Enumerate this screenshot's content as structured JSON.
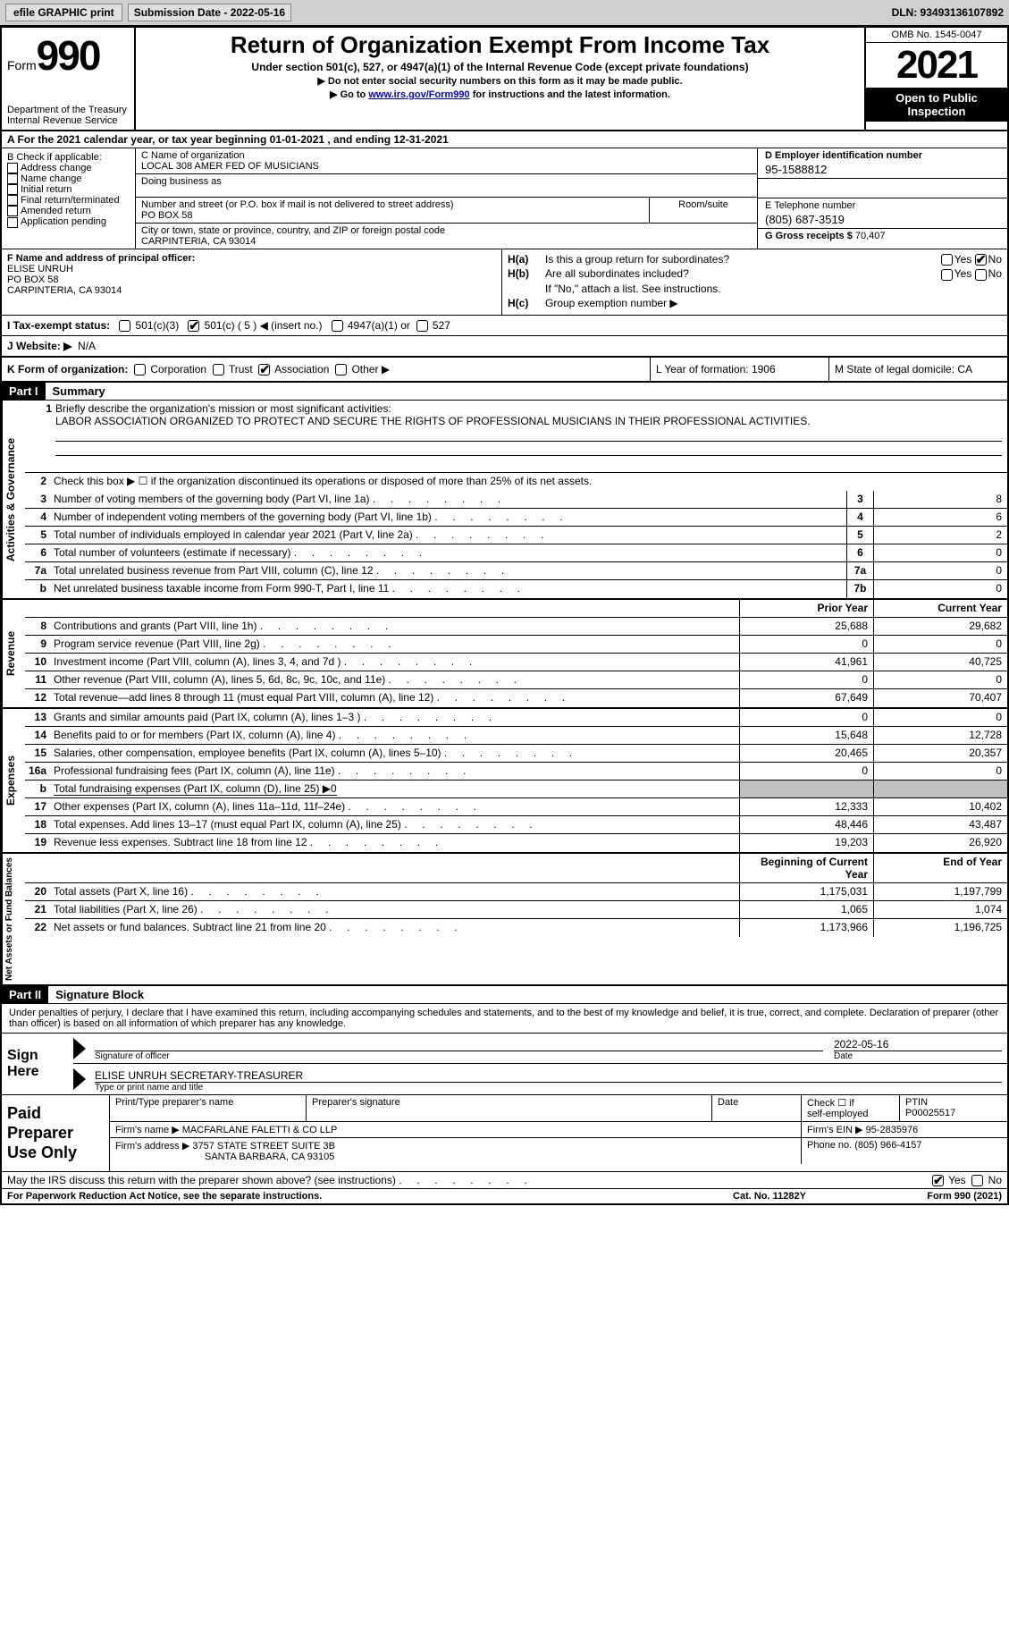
{
  "topbar": {
    "efile": "efile GRAPHIC print",
    "submission_label": "Submission Date - 2022-05-16",
    "dln": "DLN: 93493136107892"
  },
  "header": {
    "form_label": "Form",
    "form_number": "990",
    "dept": "Department of the Treasury",
    "irs": "Internal Revenue Service",
    "title": "Return of Organization Exempt From Income Tax",
    "subtitle": "Under section 501(c), 527, or 4947(a)(1) of the Internal Revenue Code (except private foundations)",
    "note1": "▶ Do not enter social security numbers on this form as it may be made public.",
    "note2_pre": "▶ Go to ",
    "note2_link": "www.irs.gov/Form990",
    "note2_post": " for instructions and the latest information.",
    "omb": "OMB No. 1545-0047",
    "year": "2021",
    "inspection": "Open to Public Inspection"
  },
  "rowA": "A   For the 2021 calendar year, or tax year beginning 01-01-2021    , and ending 12-31-2021",
  "sectionB": {
    "label": "B Check if applicable:",
    "opts": [
      "Address change",
      "Name change",
      "Initial return",
      "Final return/terminated",
      "Amended return",
      "Application pending"
    ]
  },
  "sectionC": {
    "name_label": "C Name of organization",
    "name": "LOCAL 308 AMER FED OF MUSICIANS",
    "dba_label": "Doing business as",
    "street_label": "Number and street (or P.O. box if mail is not delivered to street address)",
    "room_label": "Room/suite",
    "street": "PO BOX 58",
    "city_label": "City or town, state or province, country, and ZIP or foreign postal code",
    "city": "CARPINTERIA, CA   93014"
  },
  "sectionD": {
    "ein_label": "D Employer identification number",
    "ein": "95-1588812",
    "phone_label": "E Telephone number",
    "phone": "(805) 687-3519",
    "gross_label": "G Gross receipts $",
    "gross": "70,407"
  },
  "sectionF": {
    "label": "F  Name and address of principal officer:",
    "name": "ELISE UNRUH",
    "addr1": "PO BOX 58",
    "addr2": "CARPINTERIA, CA  93014"
  },
  "sectionH": {
    "a_label": "H(a)",
    "a_text": "Is this a group return for subordinates?",
    "b_label": "H(b)",
    "b_text": "Are all subordinates included?",
    "b_note": "If \"No,\" attach a list. See instructions.",
    "c_label": "H(c)",
    "c_text": "Group exemption number ▶",
    "yes": "Yes",
    "no": "No"
  },
  "rowI": {
    "label": "I   Tax-exempt status:",
    "o1": "501(c)(3)",
    "o2": "501(c) ( 5 ) ◀ (insert no.)",
    "o3": "4947(a)(1) or",
    "o4": "527"
  },
  "rowJ": {
    "label": "J   Website: ▶",
    "val": "N/A"
  },
  "rowK": {
    "label": "K Form of organization:",
    "o1": "Corporation",
    "o2": "Trust",
    "o3": "Association",
    "o4": "Other ▶",
    "L": "L Year of formation: 1906",
    "M": "M State of legal domicile: CA"
  },
  "partI": {
    "header": "Part I",
    "title": "Summary",
    "line1_label": "1",
    "line1_text": "Briefly describe the organization's mission or most significant activities:",
    "line1_val": "LABOR ASSOCIATION ORGANIZED TO PROTECT AND SECURE THE RIGHTS OF PROFESSIONAL MUSICIANS IN THEIR PROFESSIONAL ACTIVITIES.",
    "line2_label": "2",
    "line2_text": "Check this box ▶ ☐ if the organization discontinued its operations or disposed of more than 25% of its net assets.",
    "vert1": "Activities & Governance",
    "vert2": "Revenue",
    "vert3": "Expenses",
    "vert4": "Net Assets or Fund Balances",
    "prior_year": "Prior Year",
    "current_year": "Current Year",
    "beg_year": "Beginning of Current Year",
    "end_year": "End of Year",
    "lines_gov": [
      {
        "n": "3",
        "d": "Number of voting members of the governing body (Part VI, line 1a)",
        "box": "3",
        "v": "8"
      },
      {
        "n": "4",
        "d": "Number of independent voting members of the governing body (Part VI, line 1b)",
        "box": "4",
        "v": "6"
      },
      {
        "n": "5",
        "d": "Total number of individuals employed in calendar year 2021 (Part V, line 2a)",
        "box": "5",
        "v": "2"
      },
      {
        "n": "6",
        "d": "Total number of volunteers (estimate if necessary)",
        "box": "6",
        "v": "0"
      },
      {
        "n": "7a",
        "d": "Total unrelated business revenue from Part VIII, column (C), line 12",
        "box": "7a",
        "v": "0"
      },
      {
        "n": "b",
        "d": "Net unrelated business taxable income from Form 990-T, Part I, line 11",
        "box": "7b",
        "v": "0"
      }
    ],
    "lines_rev": [
      {
        "n": "8",
        "d": "Contributions and grants (Part VIII, line 1h)",
        "p": "25,688",
        "c": "29,682"
      },
      {
        "n": "9",
        "d": "Program service revenue (Part VIII, line 2g)",
        "p": "0",
        "c": "0"
      },
      {
        "n": "10",
        "d": "Investment income (Part VIII, column (A), lines 3, 4, and 7d )",
        "p": "41,961",
        "c": "40,725"
      },
      {
        "n": "11",
        "d": "Other revenue (Part VIII, column (A), lines 5, 6d, 8c, 9c, 10c, and 11e)",
        "p": "0",
        "c": "0"
      },
      {
        "n": "12",
        "d": "Total revenue—add lines 8 through 11 (must equal Part VIII, column (A), line 12)",
        "p": "67,649",
        "c": "70,407"
      }
    ],
    "lines_exp": [
      {
        "n": "13",
        "d": "Grants and similar amounts paid (Part IX, column (A), lines 1–3 )",
        "p": "0",
        "c": "0"
      },
      {
        "n": "14",
        "d": "Benefits paid to or for members (Part IX, column (A), line 4)",
        "p": "15,648",
        "c": "12,728"
      },
      {
        "n": "15",
        "d": "Salaries, other compensation, employee benefits (Part IX, column (A), lines 5–10)",
        "p": "20,465",
        "c": "20,357"
      },
      {
        "n": "16a",
        "d": "Professional fundraising fees (Part IX, column (A), line 11e)",
        "p": "0",
        "c": "0"
      },
      {
        "n": "b",
        "d": "Total fundraising expenses (Part IX, column (D), line 25) ▶0",
        "shaded": true
      },
      {
        "n": "17",
        "d": "Other expenses (Part IX, column (A), lines 11a–11d, 11f–24e)",
        "p": "12,333",
        "c": "10,402"
      },
      {
        "n": "18",
        "d": "Total expenses. Add lines 13–17 (must equal Part IX, column (A), line 25)",
        "p": "48,446",
        "c": "43,487"
      },
      {
        "n": "19",
        "d": "Revenue less expenses. Subtract line 18 from line 12",
        "p": "19,203",
        "c": "26,920"
      }
    ],
    "lines_net": [
      {
        "n": "20",
        "d": "Total assets (Part X, line 16)",
        "p": "1,175,031",
        "c": "1,197,799"
      },
      {
        "n": "21",
        "d": "Total liabilities (Part X, line 26)",
        "p": "1,065",
        "c": "1,074"
      },
      {
        "n": "22",
        "d": "Net assets or fund balances. Subtract line 21 from line 20",
        "p": "1,173,966",
        "c": "1,196,725"
      }
    ]
  },
  "partII": {
    "header": "Part II",
    "title": "Signature Block",
    "declaration": "Under penalties of perjury, I declare that I have examined this return, including accompanying schedules and statements, and to the best of my knowledge and belief, it is true, correct, and complete. Declaration of preparer (other than officer) is based on all information of which preparer has any knowledge.",
    "sign_here": "Sign Here",
    "sig_officer": "Signature of officer",
    "sig_date": "2022-05-16",
    "date_label": "Date",
    "officer_name": "ELISE UNRUH  SECRETARY-TREASURER",
    "type_name": "Type or print name and title"
  },
  "paid": {
    "label": "Paid Preparer Use Only",
    "col1": "Print/Type preparer's name",
    "col2": "Preparer's signature",
    "col3": "Date",
    "col4_1": "Check ☐ if",
    "col4_2": "self-employed",
    "col5_1": "PTIN",
    "col5_2": "P00025517",
    "firm_name_label": "Firm's name    ▶",
    "firm_name": "MACFARLANE FALETTI & CO LLP",
    "firm_ein_label": "Firm's EIN ▶",
    "firm_ein": "95-2835976",
    "firm_addr_label": "Firm's address ▶",
    "firm_addr1": "3757 STATE STREET SUITE 3B",
    "firm_addr2": "SANTA BARBARA, CA  93105",
    "phone_label": "Phone no.",
    "phone": "(805) 966-4157"
  },
  "footer": {
    "discuss": "May the IRS discuss this return with the preparer shown above? (see instructions)",
    "yes": "Yes",
    "no": "No",
    "paperwork": "For Paperwork Reduction Act Notice, see the separate instructions.",
    "cat": "Cat. No. 11282Y",
    "form": "Form 990 (2021)"
  }
}
